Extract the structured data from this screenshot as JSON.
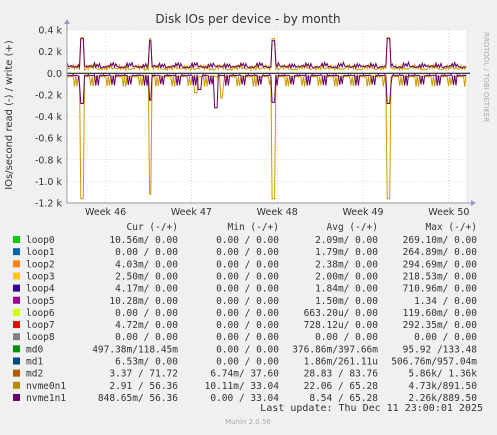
{
  "colors": {
    "background": "#f0f0f0",
    "plot_background": "#ffffff",
    "grid": "#e1aeae",
    "text": "#333333",
    "zero_line": "#000000",
    "frame": "#999999"
  },
  "watermark": "RRDTOOL / TOBI OETIKER",
  "footer": {
    "last_update": "Last update: Thu Dec 11 23:00:01 2025",
    "version": "Munin 2.0.56"
  },
  "chart_data": {
    "type": "line",
    "title": "Disk IOs per device - by month",
    "ylabel": "IOs/second read (-) / write (+)",
    "ylim": [
      -1200,
      400
    ],
    "yticks": [
      {
        "value": 400,
        "label": "0.4 k"
      },
      {
        "value": 200,
        "label": "0.2 k"
      },
      {
        "value": 0,
        "label": "0.0"
      },
      {
        "value": -200,
        "label": "-0.2 k"
      },
      {
        "value": -400,
        "label": "-0.4 k"
      },
      {
        "value": -600,
        "label": "-0.6 k"
      },
      {
        "value": -800,
        "label": "-0.8 k"
      },
      {
        "value": -1000,
        "label": "-1.0 k"
      },
      {
        "value": -1200,
        "label": "-1.2 k"
      }
    ],
    "xlim": [
      45.55,
      50.2
    ],
    "xticks": [
      {
        "value": 46,
        "label": "Week 46"
      },
      {
        "value": 47,
        "label": "Week 47"
      },
      {
        "value": 48,
        "label": "Week 48"
      },
      {
        "value": 49,
        "label": "Week 49"
      },
      {
        "value": 50,
        "label": "Week 50"
      }
    ],
    "grid": true,
    "series": [
      {
        "name": "nvme0n1",
        "color": "#cc9900",
        "write_base": 40,
        "read_base": -20,
        "spikes": [
          {
            "x": 45.72,
            "write": 330,
            "read": -1160
          },
          {
            "x": 46.52,
            "write": 320,
            "read": -1120
          },
          {
            "x": 47.95,
            "write": 320,
            "read": -1160
          },
          {
            "x": 49.3,
            "write": 330,
            "read": -1160
          },
          {
            "x": 47.35,
            "write": 0,
            "read": -230
          },
          {
            "x": 47.05,
            "write": 0,
            "read": -180
          }
        ]
      },
      {
        "name": "nvme1n1",
        "color": "#660066",
        "write_base": 60,
        "read_base": -10,
        "spikes": [
          {
            "x": 45.72,
            "write": 320,
            "read": -280
          },
          {
            "x": 46.52,
            "write": 300,
            "read": -250
          },
          {
            "x": 47.95,
            "write": 300,
            "read": -270
          },
          {
            "x": 49.3,
            "write": 320,
            "read": -280
          },
          {
            "x": 47.28,
            "write": 0,
            "read": -320
          },
          {
            "x": 47.1,
            "write": 0,
            "read": -150
          }
        ]
      }
    ]
  },
  "legend": {
    "headers": {
      "cur": "Cur (-/+)",
      "min": "Min (-/+)",
      "avg": "Avg (-/+)",
      "max": "Max (-/+)"
    },
    "rows": [
      {
        "name": "loop0",
        "color": "#00cc00",
        "cur": "10.56m/  0.00",
        "min": "0.00 /  0.00",
        "avg": "2.09m/  0.00",
        "max": "269.10m/  0.00"
      },
      {
        "name": "loop1",
        "color": "#0066b3",
        "cur": "0.00 /  0.00",
        "min": "0.00 /  0.00",
        "avg": "1.79m/  0.00",
        "max": "264.89m/  0.00"
      },
      {
        "name": "loop2",
        "color": "#ff8000",
        "cur": "4.03m/  0.00",
        "min": "0.00 /  0.00",
        "avg": "2.38m/  0.00",
        "max": "294.69m/  0.00"
      },
      {
        "name": "loop3",
        "color": "#ffcc00",
        "cur": "2.50m/  0.00",
        "min": "0.00 /  0.00",
        "avg": "2.00m/  0.00",
        "max": "218.53m/  0.00"
      },
      {
        "name": "loop4",
        "color": "#330099",
        "cur": "4.17m/  0.00",
        "min": "0.00 /  0.00",
        "avg": "1.84m/  0.00",
        "max": "710.96m/  0.00"
      },
      {
        "name": "loop5",
        "color": "#990099",
        "cur": "10.28m/  0.00",
        "min": "0.00 /  0.00",
        "avg": "1.50m/  0.00",
        "max": "1.34 /  0.00"
      },
      {
        "name": "loop6",
        "color": "#ccff00",
        "cur": "0.00 /  0.00",
        "min": "0.00 /  0.00",
        "avg": "663.20u/  0.00",
        "max": "119.60m/  0.00"
      },
      {
        "name": "loop7",
        "color": "#ff0000",
        "cur": "4.72m/  0.00",
        "min": "0.00 /  0.00",
        "avg": "728.12u/  0.00",
        "max": "292.35m/  0.00"
      },
      {
        "name": "loop8",
        "color": "#808080",
        "cur": "0.00 /  0.00",
        "min": "0.00 /  0.00",
        "avg": "0.00 /  0.00",
        "max": "0.00 /  0.00"
      },
      {
        "name": "md0",
        "color": "#008f00",
        "cur": "497.38m/118.45m",
        "min": "0.00 /  0.00",
        "avg": "376.86m/397.66m",
        "max": "95.92 /133.48"
      },
      {
        "name": "md1",
        "color": "#00487d",
        "cur": "6.53m/  0.00",
        "min": "0.00 /  0.00",
        "avg": "1.86m/261.11u",
        "max": "506.76m/957.04m"
      },
      {
        "name": "md2",
        "color": "#b35a00",
        "cur": "3.37 / 71.72",
        "min": "6.74m/ 37.60",
        "avg": "28.83 / 83.76",
        "max": "5.86k/  1.36k"
      },
      {
        "name": "nvme0n1",
        "color": "#b38f00",
        "cur": "2.91 / 56.36",
        "min": "10.11m/ 33.04",
        "avg": "22.06 / 65.28",
        "max": "4.73k/891.50"
      },
      {
        "name": "nvme1n1",
        "color": "#6b006b",
        "cur": "848.65m/ 56.36",
        "min": "0.00 / 33.04",
        "avg": "8.54 / 65.28",
        "max": "2.26k/889.50"
      }
    ]
  }
}
